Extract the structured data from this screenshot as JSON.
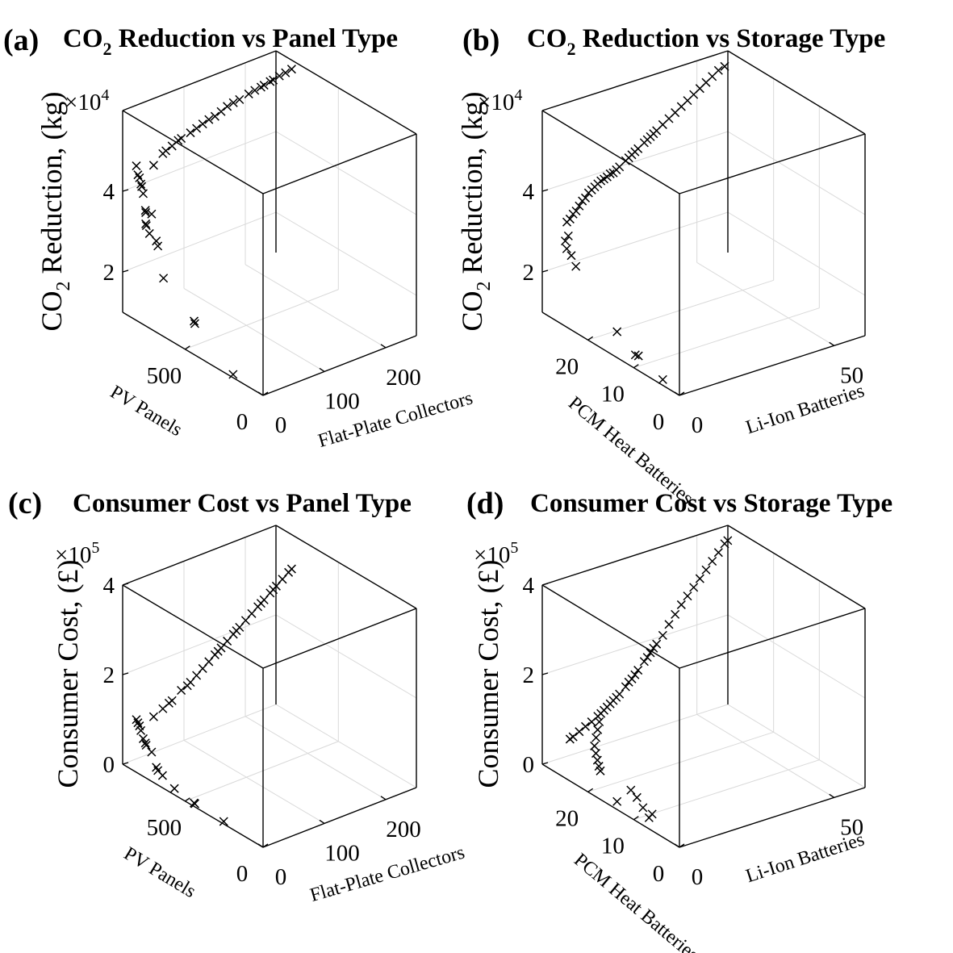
{
  "panels": [
    {
      "letter": "(a)",
      "title_main": "CO",
      "title_sub": "2",
      "title_rest": " Reduction vs Panel Type"
    },
    {
      "letter": "(b)",
      "title_main": "CO",
      "title_sub": "2",
      "title_rest": " Reduction vs Storage Type"
    },
    {
      "letter": "(c)",
      "title_main": "Consumer Cost vs Panel Type",
      "title_sub": "",
      "title_rest": ""
    },
    {
      "letter": "(d)",
      "title_main": "Consumer Cost vs Storage Type",
      "title_sub": "",
      "title_rest": ""
    }
  ],
  "chart_data": [
    {
      "type": "scatter",
      "marker": "x",
      "color": "#000000",
      "xlabel": "PV Panels",
      "ylabel": "Flat-Plate Collectors",
      "zlabel_main": "CO",
      "zlabel_sub": "2",
      "zlabel_rest": " Reduction, (kg)",
      "z_multiplier": "10",
      "z_exponent": "4",
      "x_ticks": [
        "0",
        "500"
      ],
      "y_ticks": [
        "0",
        "100",
        "200"
      ],
      "z_ticks": [
        "2",
        "4"
      ],
      "x_range": [
        0,
        900
      ],
      "y_range": [
        0,
        250
      ],
      "z_range": [
        10000,
        60000
      ],
      "grid": true,
      "points": [
        [
          820,
          2,
          48000
        ],
        [
          810,
          2,
          46000
        ],
        [
          800,
          2,
          45500
        ],
        [
          795,
          3,
          44000
        ],
        [
          790,
          3,
          43500
        ],
        [
          780,
          3,
          42000
        ],
        [
          770,
          4,
          38000
        ],
        [
          768,
          4,
          37500
        ],
        [
          740,
          3,
          33000
        ],
        [
          700,
          4,
          32000
        ],
        [
          690,
          4,
          31000
        ],
        [
          650,
          3,
          24000
        ],
        [
          450,
          2,
          18000
        ],
        [
          445,
          2,
          17500
        ],
        [
          200,
          2,
          10500
        ],
        [
          760,
          2,
          35000
        ],
        [
          760,
          3,
          34500
        ],
        [
          730,
          4,
          38000
        ],
        [
          780,
          20,
          48000
        ],
        [
          780,
          35,
          50000
        ],
        [
          780,
          50,
          51000
        ],
        [
          780,
          65,
          52000
        ],
        [
          780,
          80,
          52500
        ],
        [
          780,
          100,
          53500
        ],
        [
          780,
          110,
          54000
        ],
        [
          780,
          120,
          54200
        ],
        [
          780,
          140,
          55500
        ],
        [
          780,
          150,
          55800
        ],
        [
          780,
          160,
          56000
        ],
        [
          780,
          175,
          56500
        ],
        [
          780,
          185,
          56800
        ],
        [
          780,
          195,
          57000
        ],
        [
          780,
          210,
          57500
        ],
        [
          780,
          225,
          58000
        ],
        [
          780,
          235,
          58200
        ],
        [
          780,
          245,
          58500
        ],
        [
          780,
          90,
          53000
        ],
        [
          780,
          130,
          54800
        ],
        [
          780,
          200,
          57200
        ],
        [
          780,
          215,
          57600
        ],
        [
          780,
          60,
          51800
        ],
        [
          780,
          40,
          50400
        ]
      ]
    },
    {
      "type": "scatter",
      "marker": "x",
      "color": "#000000",
      "xlabel": "PCM Heat Batteries",
      "ylabel": "Li-Ion Batteries",
      "zlabel_main": "CO",
      "zlabel_sub": "2",
      "zlabel_rest": " Reduction, (kg)",
      "z_multiplier": "10",
      "z_exponent": "4",
      "x_ticks": [
        "0",
        "10",
        "20"
      ],
      "y_ticks": [
        "0",
        "50"
      ],
      "z_ticks": [
        "2",
        "4"
      ],
      "x_range": [
        0,
        30
      ],
      "y_range": [
        0,
        60
      ],
      "z_range": [
        10000,
        60000
      ],
      "grid": true,
      "points": [
        [
          5,
          2,
          10000
        ],
        [
          11,
          2,
          12000
        ],
        [
          11,
          3,
          11500
        ],
        [
          15,
          2,
          15000
        ],
        [
          24,
          2,
          25000
        ],
        [
          25,
          2,
          27000
        ],
        [
          26,
          2,
          28000
        ],
        [
          27,
          3,
          29000
        ],
        [
          27,
          4,
          30000
        ],
        [
          28,
          6,
          33000
        ],
        [
          28,
          8,
          34500
        ],
        [
          28,
          10,
          36500
        ],
        [
          28,
          12,
          38000
        ],
        [
          28,
          14,
          39000
        ],
        [
          28,
          16,
          40000
        ],
        [
          28,
          18,
          40500
        ],
        [
          28,
          20,
          41000
        ],
        [
          28,
          22,
          42000
        ],
        [
          28,
          24,
          43000
        ],
        [
          28,
          26,
          44000
        ],
        [
          28,
          28,
          45000
        ],
        [
          28,
          30,
          46000
        ],
        [
          28,
          32,
          47000
        ],
        [
          28,
          34,
          48000
        ],
        [
          28,
          36,
          49000
        ],
        [
          28,
          38,
          50000
        ],
        [
          28,
          40,
          51000
        ],
        [
          28,
          42,
          52000
        ],
        [
          28,
          44,
          53000
        ],
        [
          28,
          46,
          54000
        ],
        [
          28,
          48,
          55000
        ],
        [
          28,
          50,
          56000
        ],
        [
          28,
          52,
          57000
        ],
        [
          28,
          54,
          58000
        ],
        [
          28,
          56,
          58500
        ],
        [
          28,
          25,
          43500
        ],
        [
          28,
          27,
          44500
        ],
        [
          28,
          31,
          46500
        ],
        [
          28,
          33,
          47500
        ],
        [
          28,
          21,
          41500
        ],
        [
          28,
          19,
          41000
        ],
        [
          28,
          17,
          40200
        ],
        [
          28,
          15,
          39500
        ],
        [
          28,
          13,
          38500
        ],
        [
          28,
          11,
          37000
        ],
        [
          28,
          9,
          35500
        ],
        [
          28,
          7,
          34000
        ],
        [
          28,
          5,
          32500
        ]
      ]
    },
    {
      "type": "scatter",
      "marker": "x",
      "color": "#000000",
      "xlabel": "PV Panels",
      "ylabel": "Flat-Plate Collectors",
      "zlabel_main": "Consumer Cost, (£)",
      "zlabel_sub": "",
      "zlabel_rest": "",
      "z_multiplier": "10",
      "z_exponent": "5",
      "x_ticks": [
        "0",
        "500"
      ],
      "y_ticks": [
        "0",
        "100",
        "200"
      ],
      "z_ticks": [
        "0",
        "2",
        "4"
      ],
      "x_range": [
        0,
        900
      ],
      "y_range": [
        0,
        250
      ],
      "z_range": [
        0,
        400000
      ],
      "grid": true,
      "points": [
        [
          820,
          2,
          115000
        ],
        [
          810,
          2,
          110000
        ],
        [
          800,
          2,
          105000
        ],
        [
          795,
          3,
          95000
        ],
        [
          780,
          3,
          80000
        ],
        [
          770,
          4,
          72000
        ],
        [
          765,
          4,
          68000
        ],
        [
          730,
          4,
          60000
        ],
        [
          700,
          4,
          32000
        ],
        [
          690,
          4,
          27000
        ],
        [
          660,
          4,
          22000
        ],
        [
          580,
          3,
          10000
        ],
        [
          450,
          2,
          5000
        ],
        [
          445,
          2,
          4500
        ],
        [
          260,
          2,
          3000
        ],
        [
          780,
          20,
          120000
        ],
        [
          780,
          35,
          130000
        ],
        [
          780,
          50,
          140000
        ],
        [
          780,
          65,
          155000
        ],
        [
          780,
          80,
          165000
        ],
        [
          780,
          90,
          175000
        ],
        [
          780,
          100,
          185000
        ],
        [
          780,
          110,
          195000
        ],
        [
          780,
          120,
          205000
        ],
        [
          780,
          130,
          215000
        ],
        [
          780,
          140,
          225000
        ],
        [
          780,
          150,
          235000
        ],
        [
          780,
          160,
          245000
        ],
        [
          780,
          170,
          255000
        ],
        [
          780,
          180,
          265000
        ],
        [
          780,
          190,
          275000
        ],
        [
          780,
          200,
          285000
        ],
        [
          780,
          210,
          295000
        ],
        [
          780,
          220,
          305000
        ],
        [
          780,
          230,
          315000
        ],
        [
          780,
          240,
          325000
        ],
        [
          780,
          245,
          330000
        ],
        [
          780,
          195,
          280000
        ],
        [
          780,
          215,
          300000
        ],
        [
          780,
          155,
          240000
        ],
        [
          780,
          125,
          210000
        ],
        [
          780,
          75,
          160000
        ],
        [
          780,
          45,
          137000
        ]
      ]
    },
    {
      "type": "scatter",
      "marker": "x",
      "color": "#000000",
      "xlabel": "PCM Heat Batteries",
      "ylabel": "Li-Ion Batteries",
      "zlabel_main": "Consumer Cost, (£)",
      "zlabel_sub": "",
      "zlabel_rest": "",
      "z_multiplier": "10",
      "z_exponent": "5",
      "x_ticks": [
        "0",
        "10",
        "20"
      ],
      "y_ticks": [
        "0",
        "50"
      ],
      "z_ticks": [
        "0",
        "2",
        "4"
      ],
      "x_range": [
        0,
        30
      ],
      "y_range": [
        0,
        60
      ],
      "z_range": [
        0,
        400000
      ],
      "grid": true,
      "points": [
        [
          15,
          2,
          5000
        ],
        [
          8,
          2,
          12000
        ],
        [
          8,
          3,
          18000
        ],
        [
          10,
          3,
          20000
        ],
        [
          12,
          4,
          28000
        ],
        [
          14,
          5,
          30000
        ],
        [
          20,
          4,
          38000
        ],
        [
          21,
          5,
          40000
        ],
        [
          22,
          6,
          45000
        ],
        [
          23,
          7,
          52000
        ],
        [
          24,
          8,
          60000
        ],
        [
          25,
          10,
          68000
        ],
        [
          26,
          12,
          75000
        ],
        [
          27,
          14,
          82000
        ],
        [
          28,
          16,
          90000
        ],
        [
          28,
          18,
          100000
        ],
        [
          28,
          20,
          110000
        ],
        [
          28,
          22,
          120000
        ],
        [
          28,
          24,
          132000
        ],
        [
          28,
          26,
          145000
        ],
        [
          28,
          28,
          160000
        ],
        [
          28,
          30,
          175000
        ],
        [
          28,
          32,
          190000
        ],
        [
          28,
          34,
          205000
        ],
        [
          28,
          36,
          220000
        ],
        [
          28,
          38,
          240000
        ],
        [
          28,
          40,
          258000
        ],
        [
          28,
          42,
          275000
        ],
        [
          28,
          44,
          290000
        ],
        [
          28,
          46,
          305000
        ],
        [
          28,
          48,
          320000
        ],
        [
          28,
          50,
          335000
        ],
        [
          28,
          52,
          350000
        ],
        [
          28,
          54,
          365000
        ],
        [
          28,
          56,
          380000
        ],
        [
          28,
          57,
          385000
        ],
        [
          28,
          25,
          140000
        ],
        [
          28,
          27,
          152000
        ],
        [
          28,
          31,
          182000
        ],
        [
          28,
          33,
          198000
        ],
        [
          28,
          21,
          115000
        ],
        [
          28,
          19,
          105000
        ],
        [
          28,
          17,
          95000
        ],
        [
          28,
          15,
          86000
        ],
        [
          28,
          13,
          78000
        ],
        [
          28,
          11,
          72000
        ],
        [
          28,
          9,
          65000
        ],
        [
          28,
          7,
          58000
        ],
        [
          28,
          6,
          55000
        ]
      ]
    }
  ]
}
